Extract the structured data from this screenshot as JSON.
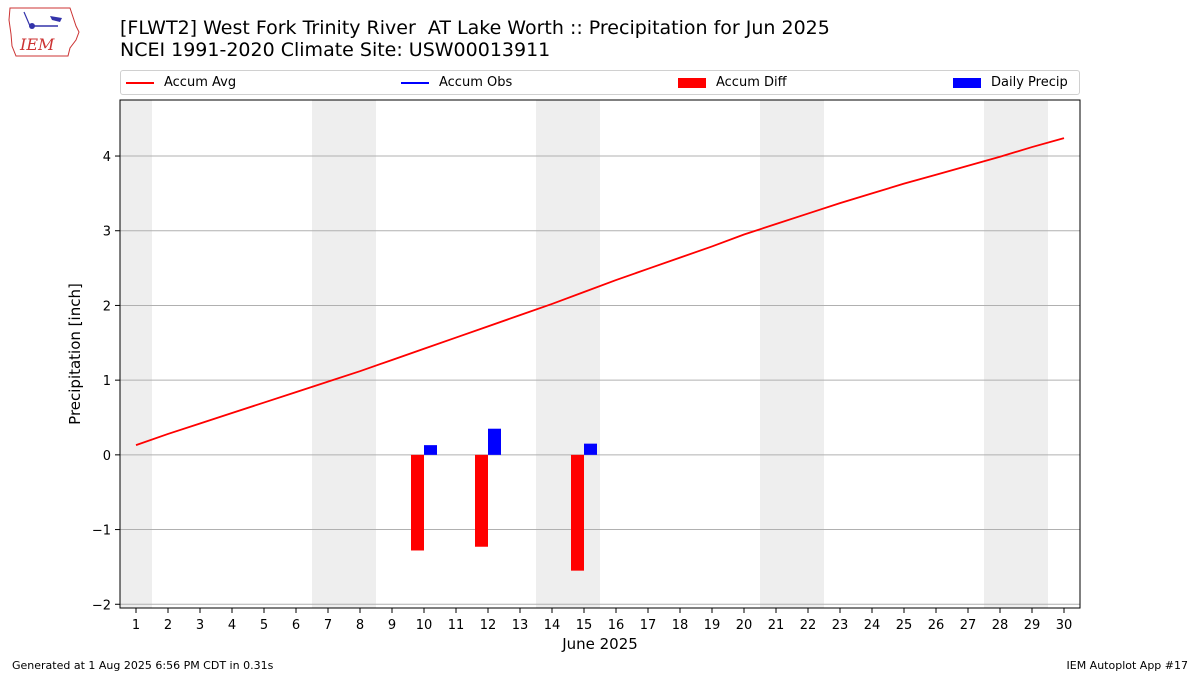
{
  "header": {
    "title_line1": "[FLWT2] West Fork Trinity River  AT Lake Worth :: Precipitation for Jun 2025",
    "title_line2": "NCEI 1991-2020 Climate Site: USW00013911",
    "logo_text": "IEM"
  },
  "legend": {
    "items": [
      {
        "label": "Accum Avg",
        "color": "#ff0000",
        "kind": "line"
      },
      {
        "label": "Accum Obs",
        "color": "#0000ff",
        "kind": "line"
      },
      {
        "label": "Accum Diff",
        "color": "#ff0000",
        "kind": "bar"
      },
      {
        "label": "Daily Precip",
        "color": "#0000ff",
        "kind": "bar"
      }
    ]
  },
  "footer": {
    "left": "Generated at 1 Aug 2025 6:56 PM CDT in 0.31s",
    "right": "IEM Autoplot App #17"
  },
  "chart_data": {
    "type": "bar",
    "xlabel": "June 2025",
    "ylabel": "Precipitation [inch]",
    "xlim": [
      0.5,
      30.5
    ],
    "ylim": [
      -2.05,
      4.75
    ],
    "yticks": [
      -2,
      -1,
      0,
      1,
      2,
      3,
      4
    ],
    "ytick_labels": [
      "−2",
      "−1",
      "0",
      "1",
      "2",
      "3",
      "4"
    ],
    "xticks": [
      1,
      2,
      3,
      4,
      5,
      6,
      7,
      8,
      9,
      10,
      11,
      12,
      13,
      14,
      15,
      16,
      17,
      18,
      19,
      20,
      21,
      22,
      23,
      24,
      25,
      26,
      27,
      28,
      29,
      30
    ],
    "weekend_spans": [
      [
        0.5,
        1.5
      ],
      [
        6.5,
        8.5
      ],
      [
        13.5,
        15.5
      ],
      [
        20.5,
        22.5
      ],
      [
        27.5,
        29.5
      ]
    ],
    "grid": "y",
    "colors": {
      "avg": "#ff0000",
      "obs": "#0000ff",
      "diff": "#ff0000",
      "daily": "#0000ff",
      "weekend": "#eeeeee",
      "grid": "#b0b0b0"
    },
    "accum_avg": {
      "x": [
        1,
        2,
        3,
        4,
        5,
        6,
        7,
        8,
        9,
        10,
        11,
        12,
        13,
        14,
        15,
        16,
        17,
        18,
        19,
        20,
        21,
        22,
        23,
        24,
        25,
        26,
        27,
        28,
        29,
        30
      ],
      "values": [
        0.13,
        0.28,
        0.42,
        0.56,
        0.7,
        0.84,
        0.98,
        1.12,
        1.27,
        1.42,
        1.57,
        1.72,
        1.87,
        2.02,
        2.18,
        2.34,
        2.49,
        2.64,
        2.79,
        2.95,
        3.09,
        3.23,
        3.37,
        3.5,
        3.63,
        3.75,
        3.87,
        3.99,
        4.12,
        4.24
      ]
    },
    "accum_diff": {
      "x": [
        10,
        12,
        15
      ],
      "values": [
        -1.28,
        -1.23,
        -1.55
      ]
    },
    "daily_precip": {
      "x": [
        10,
        12,
        15
      ],
      "values": [
        0.13,
        0.35,
        0.15
      ]
    }
  }
}
